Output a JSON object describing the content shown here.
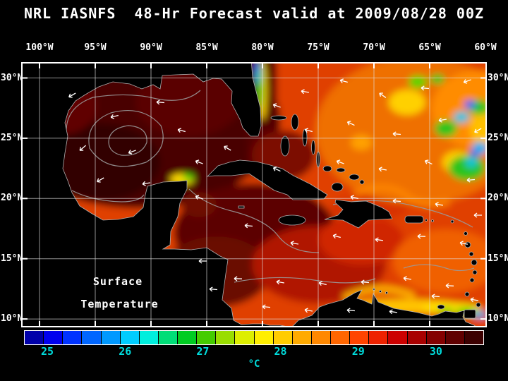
{
  "title": "NRL IASNFS  48-Hr Forecast valid at 2009/08/28 00Z",
  "map": {
    "overlay_label_line1": "Surface",
    "overlay_label_line2": "Temperature"
  },
  "axes": {
    "top": [
      "100°W",
      "95°W",
      "90°W",
      "85°W",
      "80°W",
      "75°W",
      "70°W",
      "65°W",
      "60°W"
    ],
    "left": [
      "30°N",
      "25°N",
      "20°N",
      "15°N",
      "10°N"
    ],
    "right": [
      "30°N",
      "25°N",
      "20°N",
      "15°N",
      "10°N"
    ]
  },
  "colorbar": {
    "unit": "°C",
    "ticks": [
      "25",
      "26",
      "27",
      "28",
      "29",
      "30"
    ],
    "scale_min": 24.7,
    "scale_max": 30.6,
    "label_color": "#00dcdc",
    "colors": [
      "#0000aa",
      "#0000ee",
      "#0033ff",
      "#0066ff",
      "#0099ff",
      "#00ccff",
      "#00eedd",
      "#00dd77",
      "#00cc22",
      "#44cc00",
      "#99dd00",
      "#ddee00",
      "#ffee00",
      "#ffcc00",
      "#ffaa00",
      "#ff8800",
      "#ff6600",
      "#ff4400",
      "#ee2200",
      "#cc0000",
      "#a80000",
      "#840000",
      "#600000",
      "#3c0000"
    ]
  },
  "chart_data": {
    "type": "heatmap",
    "title": "NRL IASNFS  48-Hr Forecast valid at 2009/08/28 00Z",
    "variable": "Surface Temperature",
    "units": "°C",
    "model": "NRL IASNFS",
    "forecast_hours": 48,
    "valid_time": "2009/08/28 00Z",
    "lon_ticks_deg_w": [
      100,
      95,
      90,
      85,
      80,
      75,
      70,
      65,
      60
    ],
    "lat_ticks_deg_n": [
      30,
      25,
      20,
      15,
      10
    ],
    "colorbar_range_c": [
      24.7,
      30.6
    ],
    "colorbar_tick_values_c": [
      25,
      26,
      27,
      28,
      29,
      30
    ],
    "region_notes": "Gulf of Mexico very warm (29-31°C, dark red); Caribbean 28-30°C; NW Atlantic eddy field with cooler 25-28°C patches (green/blue) in northeast; coastal upwelling cool streaks north of Yucatan and along Venezuela coast; white wind/current vectors over ocean"
  }
}
